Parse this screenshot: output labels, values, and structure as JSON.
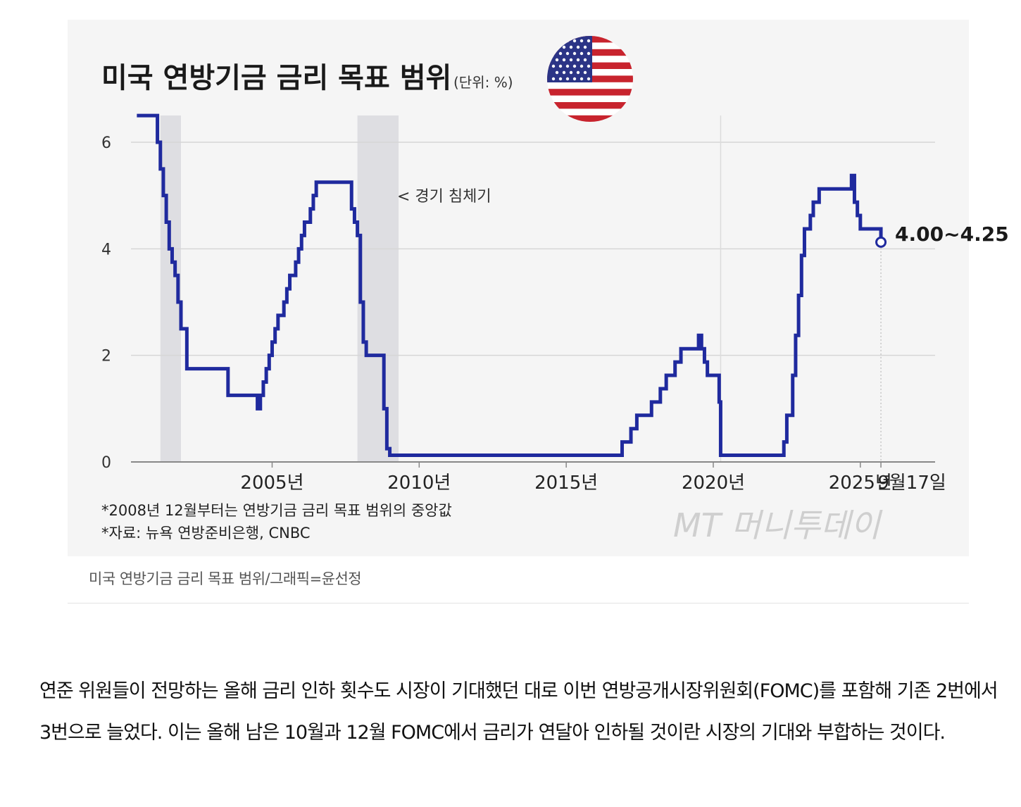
{
  "chart_data": {
    "type": "line",
    "title": "미국 연방기금 금리 목표 범위",
    "unit_note": "(단위: %)",
    "y_ticks": [
      "0",
      "2",
      "4",
      "6"
    ],
    "x_tick_labels": [
      "2005년",
      "2010년",
      "2015년",
      "2020년",
      "2025년",
      "9월17일"
    ],
    "ylim": [
      0,
      6.6
    ],
    "xlim": [
      1999.5,
      2028
    ],
    "grid": "horizontal",
    "recession_label": "< 경기 침체기",
    "recessions": [
      [
        2001.2,
        2001.9
      ],
      [
        2007.9,
        2009.3
      ]
    ],
    "end_label": "4.00~4.25",
    "notes": [
      "*2008년 12월부터는 연방기금 금리 목표 범위의 중앙값",
      "*자료: 뉴욕 연방준비은행, CNBC"
    ],
    "watermark": "MT 머니투데이",
    "series": [
      {
        "x": [
          2000.4,
          2001.0,
          2001.1,
          2001.2,
          2001.3,
          2001.4,
          2001.5,
          2001.6,
          2001.7,
          2001.8,
          2001.9,
          2002.1,
          2002.9,
          2003.5,
          2004.5,
          2004.6,
          2004.7,
          2004.8,
          2004.9,
          2005.0,
          2005.1,
          2005.2,
          2005.4,
          2005.5,
          2005.6,
          2005.8,
          2005.9,
          2006.0,
          2006.1,
          2006.3,
          2006.4,
          2006.5,
          2007.6,
          2007.7,
          2007.8,
          2007.9,
          2008.0,
          2008.1,
          2008.2,
          2008.3,
          2008.8,
          2008.9,
          2009.0,
          2015.9,
          2016.9,
          2017.2,
          2017.4,
          2017.9,
          2018.2,
          2018.4,
          2018.7,
          2018.9,
          2019.5,
          2019.6,
          2019.7,
          2019.8,
          2020.2,
          2020.25,
          2022.2,
          2022.4,
          2022.5,
          2022.7,
          2022.8,
          2022.9,
          2023.0,
          2023.1,
          2023.3,
          2023.4,
          2023.6,
          2024.7,
          2024.8,
          2024.9,
          2025.0,
          2025.7
        ],
        "y": [
          6.5,
          6.5,
          6.0,
          5.5,
          5.0,
          4.5,
          4.0,
          3.75,
          3.5,
          3.0,
          2.5,
          1.75,
          1.75,
          1.25,
          1.0,
          1.25,
          1.5,
          1.75,
          2.0,
          2.25,
          2.5,
          2.75,
          3.0,
          3.25,
          3.5,
          3.75,
          4.0,
          4.25,
          4.5,
          4.75,
          5.0,
          5.25,
          5.25,
          4.75,
          4.5,
          4.25,
          3.0,
          2.25,
          2.0,
          2.0,
          1.0,
          0.25,
          0.125,
          0.125,
          0.375,
          0.625,
          0.875,
          1.125,
          1.375,
          1.625,
          1.875,
          2.125,
          2.375,
          2.125,
          1.875,
          1.625,
          1.125,
          0.125,
          0.125,
          0.375,
          0.875,
          1.625,
          2.375,
          3.125,
          3.875,
          4.375,
          4.625,
          4.875,
          5.125,
          5.375,
          4.875,
          4.625,
          4.375,
          4.125
        ]
      }
    ],
    "colors": {
      "line": "#1f2a9e",
      "recession": "#dedee2",
      "grid": "#d6d6d6",
      "axis": "#888888",
      "bg": "#f5f5f5"
    }
  },
  "caption": "미국 연방기금 금리 목표 범위/그래픽=윤선정",
  "article": "연준 위원들이 전망하는 올해 금리 인하 횟수도 시장이 기대했던 대로 이번 연방공개시장위원회(FOMC)를 포함해 기존 2번에서 3번으로 늘었다. 이는 올해 남은 10월과 12월 FOMC에서 금리가 연달아 인하될 것이란 시장의 기대와 부합하는 것이다."
}
